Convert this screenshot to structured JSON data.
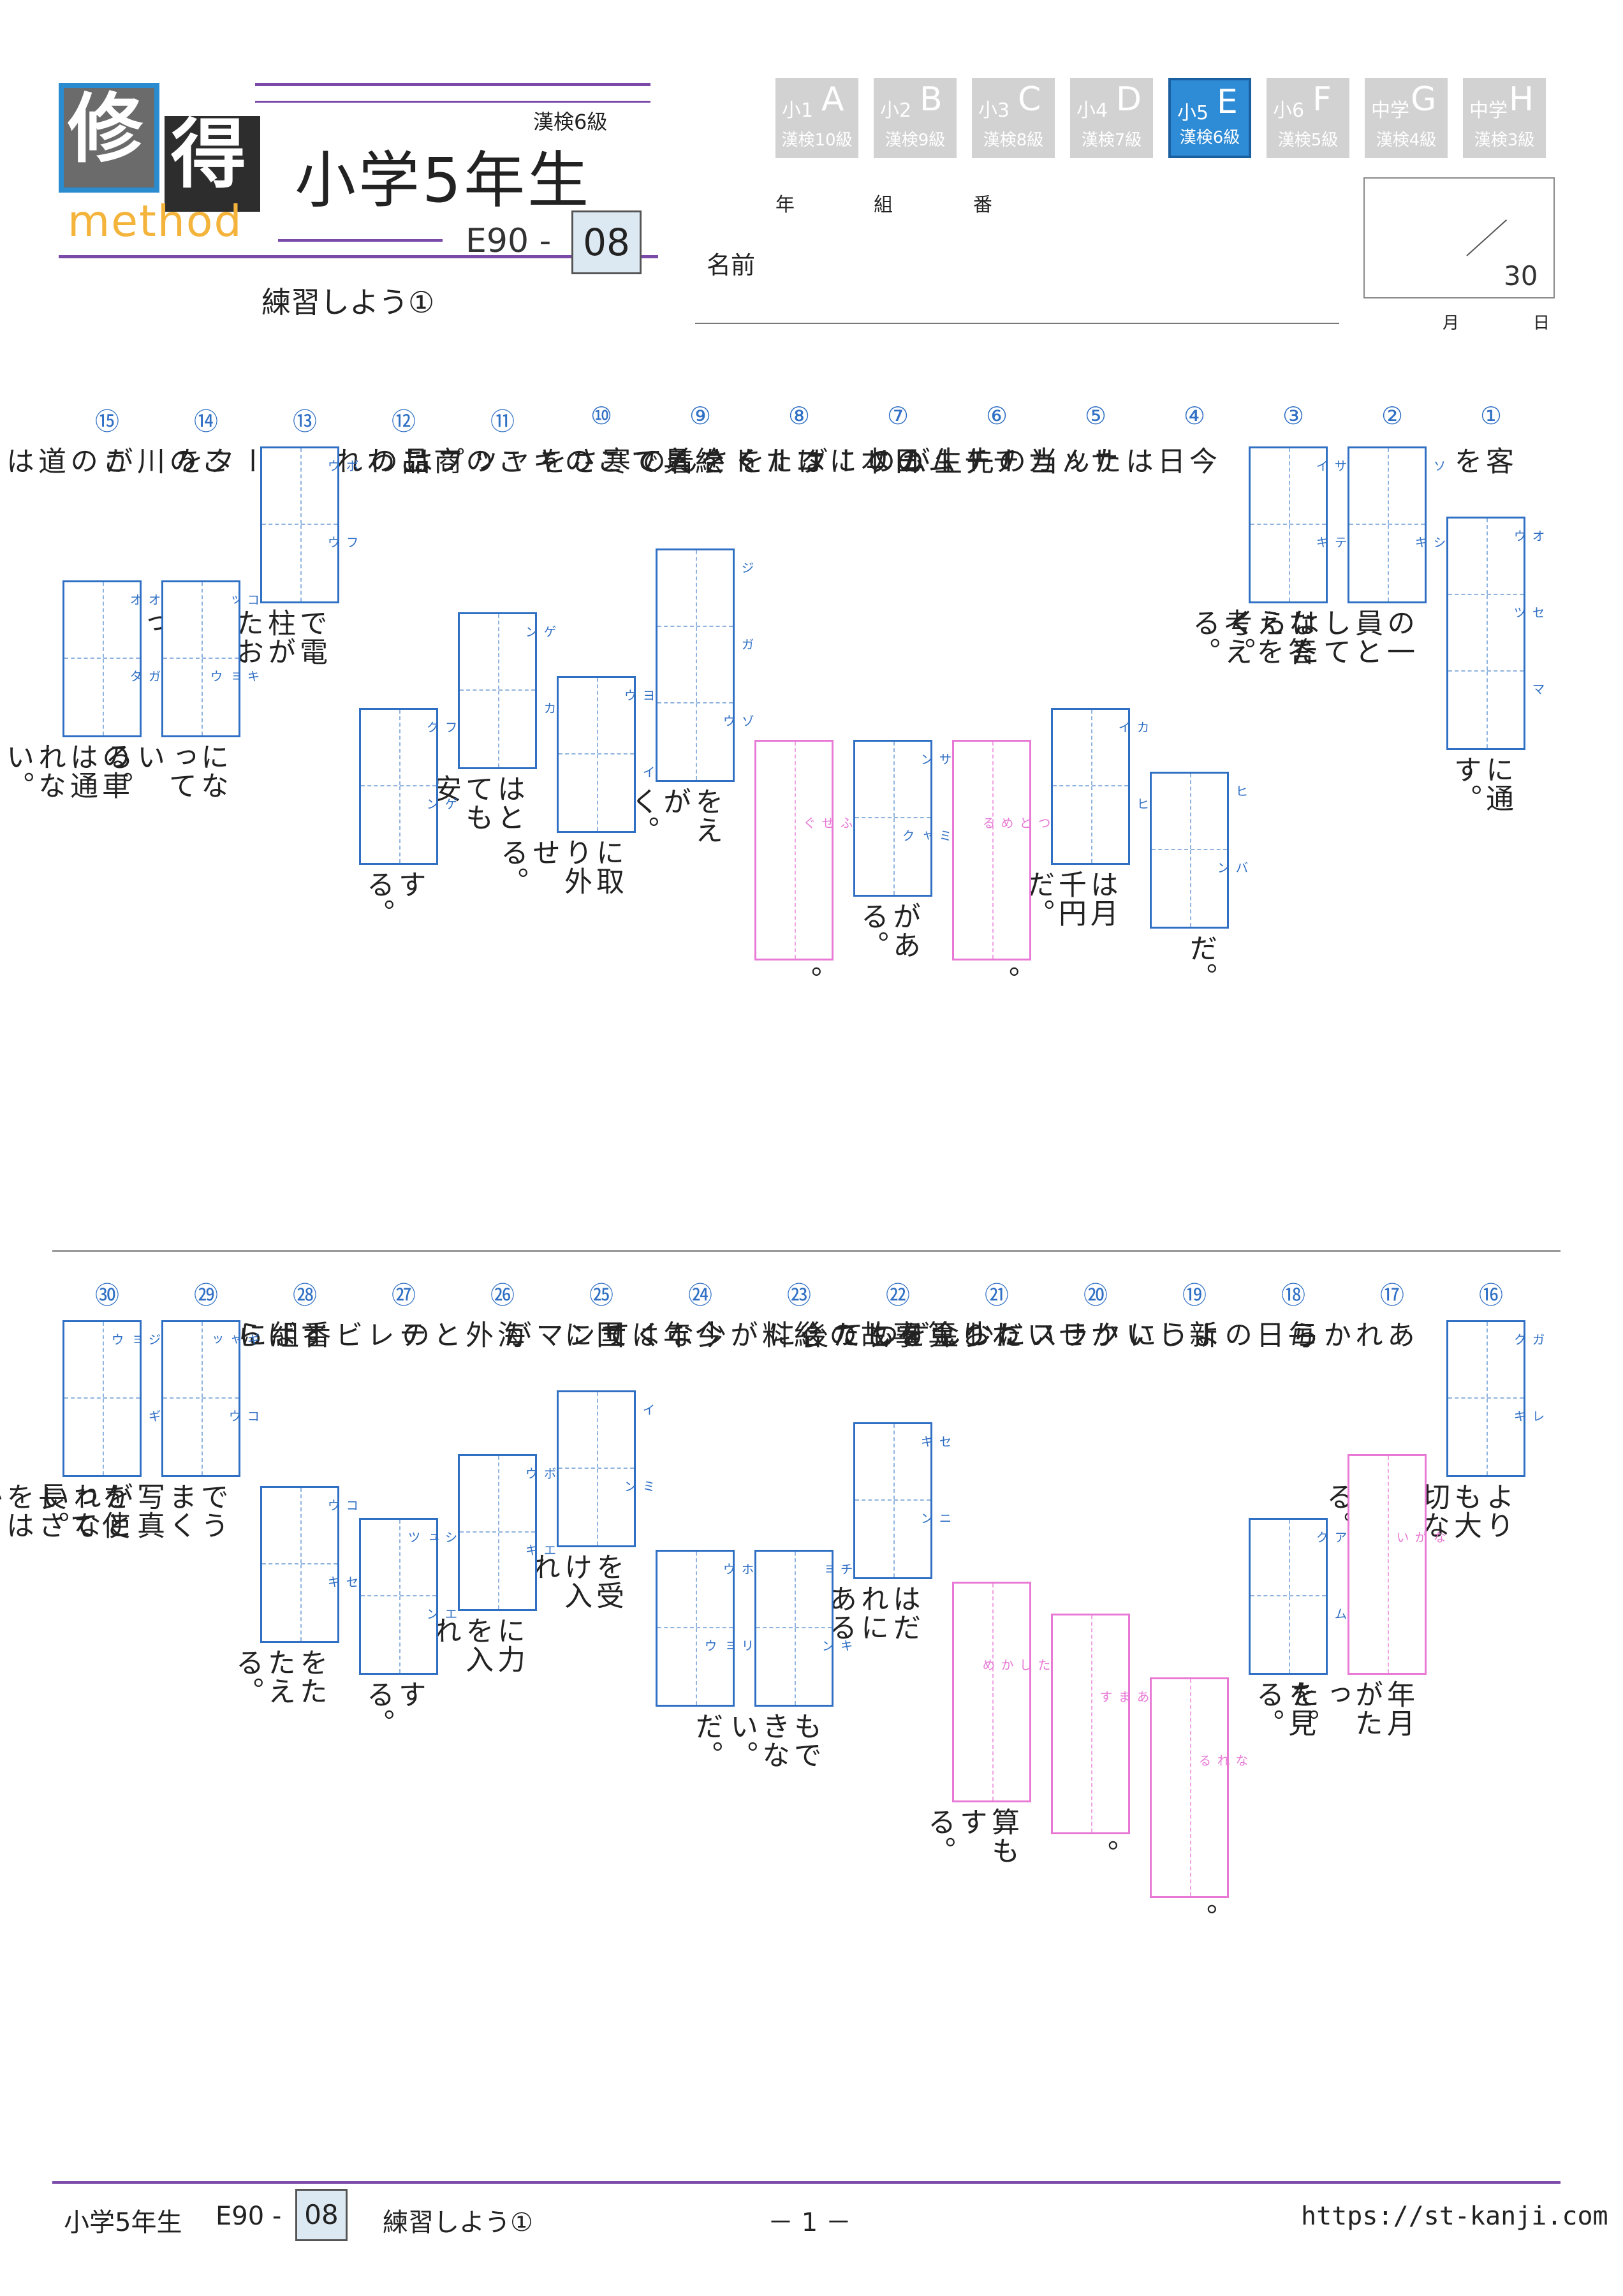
{
  "logo": {
    "char1": "修",
    "char2": "得",
    "word": "method"
  },
  "header": {
    "kyu": "漢検6級",
    "title": "小学5年生",
    "code_prefix": "E90 -",
    "code_number": "08",
    "subtitle": "練習しよう①"
  },
  "levels": [
    {
      "grade": "小1",
      "letter": "A",
      "kanken": "漢検10級",
      "active": false
    },
    {
      "grade": "小2",
      "letter": "B",
      "kanken": "漢検9級",
      "active": false
    },
    {
      "grade": "小3",
      "letter": "C",
      "kanken": "漢検8級",
      "active": false
    },
    {
      "grade": "小4",
      "letter": "D",
      "kanken": "漢検7級",
      "active": false
    },
    {
      "grade": "小5",
      "letter": "E",
      "kanken": "漢検6級",
      "active": true
    },
    {
      "grade": "小6",
      "letter": "F",
      "kanken": "漢検5級",
      "active": false
    },
    {
      "grade": "中学",
      "letter": "G",
      "kanken": "漢検4級",
      "active": false
    },
    {
      "grade": "中学",
      "letter": "H",
      "kanken": "漢検3級",
      "active": false
    }
  ],
  "student": {
    "year": "年",
    "class": "組",
    "number": "番",
    "name_label": "名前",
    "month": "月",
    "day": "日"
  },
  "score": {
    "total": "30"
  },
  "questions": [
    {
      "num": "①",
      "before": "客を",
      "ruby": [
        "オウ",
        "セツ",
        "マ"
      ],
      "pink": false,
      "after": "に通す。"
    },
    {
      "num": "②",
      "before": "",
      "ruby": [
        "ソ",
        "シキ"
      ],
      "pink": false,
      "after": "の一員としてはたらく。"
    },
    {
      "num": "③",
      "before": "",
      "ruby": [
        "サイ",
        "テキ"
      ],
      "pink": false,
      "after": "な答えを考える。"
    },
    {
      "num": "④",
      "before": "今日はたん当の先生が",
      "ruby": [
        "ヒ",
        "バン"
      ],
      "pink": false,
      "after": "だ。"
    },
    {
      "num": "⑤",
      "before": "サッカーチームの",
      "ruby": [
        "カイ",
        "ヒ"
      ],
      "pink": false,
      "after": "は月千円だ。"
    },
    {
      "num": "⑥",
      "before": "チームのリーダーを",
      "ruby": [
        "つとめる"
      ],
      "pink": true,
      "after": "。"
    },
    {
      "num": "⑦",
      "before": "日本にはたくさんの",
      "ruby": [
        "サン",
        "ミャク"
      ],
      "pink": false,
      "after": "がある。"
    },
    {
      "num": "⑧",
      "before": "コートを着て寒さを",
      "ruby": [
        "ふせぐ"
      ],
      "pink": true,
      "after": "。"
    },
    {
      "num": "⑨",
      "before": "絵具で",
      "ruby": [
        "ジ",
        "ガ",
        "ゾウ"
      ],
      "pink": false,
      "after": "をえがく。"
    },
    {
      "num": "⑩",
      "before": "このキャップは",
      "ruby": [
        "ヨウ",
        "イ"
      ],
      "pink": false,
      "after": "に取り外せる。"
    },
    {
      "num": "⑪",
      "before": "この商品の",
      "ruby": [
        "ゲン",
        "カ"
      ],
      "pink": false,
      "after": "はとても安い。"
    },
    {
      "num": "⑫",
      "before": "こわれたデータを",
      "ruby": [
        "フク",
        "ゲン"
      ],
      "pink": false,
      "after": "する。"
    },
    {
      "num": "⑬",
      "before": "",
      "ruby": [
        "ボウ",
        "フウ"
      ],
      "pink": false,
      "after": "で電柱がたおれてしまった。"
    },
    {
      "num": "⑭",
      "before": "この川が",
      "ruby": [
        "コッ",
        "キョウ"
      ],
      "pink": false,
      "after": "になっている。"
    },
    {
      "num": "⑮",
      "before": "この道は",
      "ruby": [
        "オオ",
        "ガタ"
      ],
      "pink": false,
      "after": "の車は通れない。"
    },
    {
      "num": "⑯",
      "before": "",
      "ruby": [
        "ガク",
        "レキ"
      ],
      "pink": false,
      "after": "よりも大切なことがある。"
    },
    {
      "num": "⑰",
      "before": "あれから",
      "ruby": [
        "ながい"
      ],
      "pink": true,
      "after": "年月がたった。"
    },
    {
      "num": "⑱",
      "before": "毎日のように",
      "ruby": [
        "アク",
        "ム"
      ],
      "pink": false,
      "after": "を見る。"
    },
    {
      "num": "⑲",
      "before": "新しいクラスに少しずつ",
      "ruby": [
        "なれる"
      ],
      "pink": true,
      "after": "。"
    },
    {
      "num": "⑳",
      "before": "かせいだお金をもて",
      "ruby": [
        "あます"
      ],
      "pink": true,
      "after": "。"
    },
    {
      "num": "㉑",
      "before": "わり算をした後に",
      "ruby": [
        "たしかめ"
      ],
      "pink": true,
      "after": "算もする。"
    },
    {
      "num": "㉒",
      "before": "事故の",
      "ruby": [
        "セキ",
        "ニン"
      ],
      "pink": false,
      "after": "はだれにあるのか。"
    },
    {
      "num": "㉓",
      "before": "給料が少なくて",
      "ruby": [
        "チョ",
        "キン"
      ],
      "pink": false,
      "after": "もできない。"
    },
    {
      "num": "㉔",
      "before": "今年はサンマが",
      "ruby": [
        "ホウ",
        "リョウ"
      ],
      "pink": false,
      "after": "だ。"
    },
    {
      "num": "㉕",
      "before": "国に",
      "ruby": [
        "イ",
        "ミン"
      ],
      "pink": false,
      "after": "を受け入れる。"
    },
    {
      "num": "㉖",
      "before": "海外との",
      "ruby": [
        "ボウ",
        "エキ"
      ],
      "pink": false,
      "after": "に力を入れる。"
    },
    {
      "num": "㉗",
      "before": "テレビ番組に",
      "ruby": [
        "シュツ",
        "エン"
      ],
      "pink": false,
      "after": "する。"
    },
    {
      "num": "㉘",
      "before": "すばらしい",
      "ruby": [
        "コウ",
        "セキ"
      ],
      "pink": false,
      "after": "をたたえる。"
    },
    {
      "num": "㉙",
      "before": "",
      "ruby": [
        "ギャッ",
        "コウ"
      ],
      "pink": false,
      "after": "でうまく写真がとれない。"
    },
    {
      "num": "㉚",
      "before": "",
      "ruby": [
        "ジョウ",
        "ギ"
      ],
      "pink": false,
      "after": "を使って長さをはかる。"
    }
  ],
  "footer": {
    "title": "小学5年生",
    "code_prefix": "E90 -",
    "code_number": "08",
    "subtitle": "練習しよう①",
    "page": "－ 1 －",
    "url": "https://st-kanji.com"
  },
  "colors": {
    "accent_purple": "#7b4aa8",
    "active_level": "#2e8bd6",
    "box_blue": "#2f6fc4",
    "box_pink": "#e87ad6"
  }
}
